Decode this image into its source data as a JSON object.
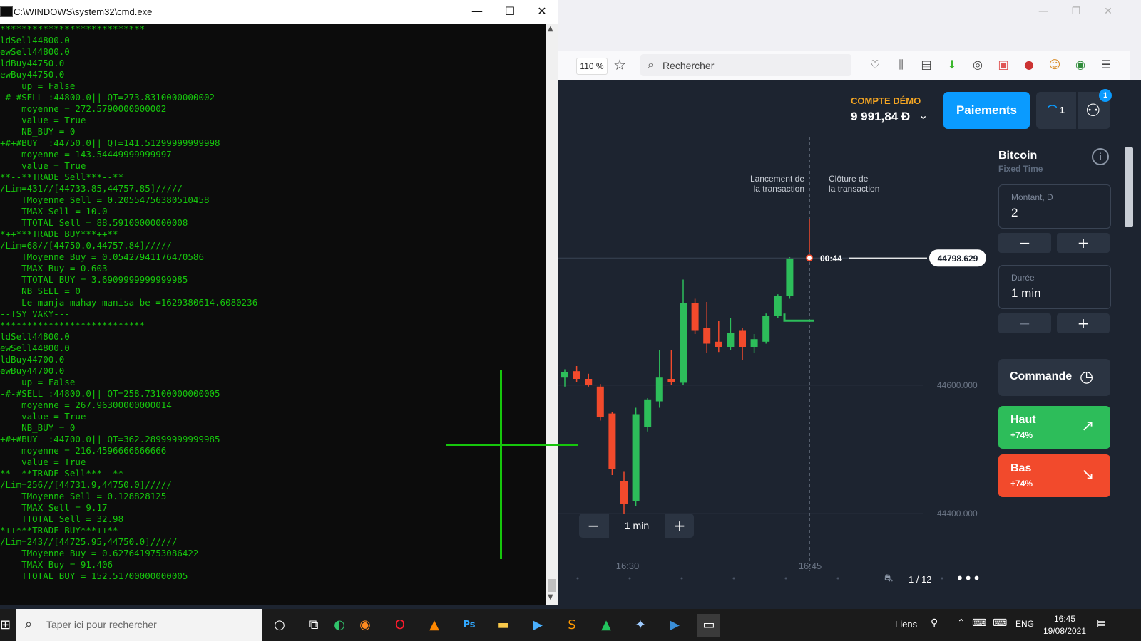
{
  "browser": {
    "zoom": "110 %",
    "search_placeholder": "Rechercher"
  },
  "app": {
    "account_label": "COMPTE DÉMO",
    "balance": "9 991,84 Đ",
    "payments_button": "Paiements",
    "tournament_count": "1",
    "user_badge": "1",
    "asset_name": "Bitcoin",
    "asset_type": "Fixed Time",
    "amount_label": "Montant, Đ",
    "amount_value": "2",
    "duration_label": "Durée",
    "duration_value": "1 min",
    "order_button": "Commande",
    "up_button": {
      "label": "Haut",
      "payout": "+74%"
    },
    "down_button": {
      "label": "Bas",
      "payout": "+74%"
    },
    "chart_duration": "1 min",
    "pagination": "1 / 12",
    "colors": {
      "up": "#2dbd5a",
      "down": "#f24a2c",
      "accent": "#0a9bff",
      "bg": "#1d2430"
    }
  },
  "chart_data": {
    "type": "candlestick",
    "asset": "Bitcoin",
    "current_price": "44798.629",
    "timer": "00:44",
    "start_label": "Lancement de\nla transaction",
    "end_label": "Clôture de\nla transaction",
    "y_ticks": [
      "44600.000",
      "44400.000"
    ],
    "x_ticks": [
      "16:30",
      "16:45"
    ],
    "candles": [
      {
        "o": 44612,
        "h": 44625,
        "l": 44598,
        "c": 44620
      },
      {
        "o": 44622,
        "h": 44630,
        "l": 44605,
        "c": 44610
      },
      {
        "o": 44610,
        "h": 44618,
        "l": 44598,
        "c": 44600
      },
      {
        "o": 44598,
        "h": 44602,
        "l": 44545,
        "c": 44550
      },
      {
        "o": 44556,
        "h": 44558,
        "l": 44460,
        "c": 44470
      },
      {
        "o": 44450,
        "h": 44465,
        "l": 44390,
        "c": 44415
      },
      {
        "o": 44420,
        "h": 44565,
        "l": 44412,
        "c": 44555
      },
      {
        "o": 44535,
        "h": 44580,
        "l": 44528,
        "c": 44578
      },
      {
        "o": 44575,
        "h": 44655,
        "l": 44565,
        "c": 44612
      },
      {
        "o": 44610,
        "h": 44655,
        "l": 44600,
        "c": 44605
      },
      {
        "o": 44604,
        "h": 44765,
        "l": 44600,
        "c": 44728
      },
      {
        "o": 44728,
        "h": 44735,
        "l": 44680,
        "c": 44685
      },
      {
        "o": 44690,
        "h": 44730,
        "l": 44650,
        "c": 44665
      },
      {
        "o": 44668,
        "h": 44700,
        "l": 44652,
        "c": 44660
      },
      {
        "o": 44660,
        "h": 44705,
        "l": 44655,
        "c": 44682
      },
      {
        "o": 44685,
        "h": 44690,
        "l": 44640,
        "c": 44660
      },
      {
        "o": 44660,
        "h": 44680,
        "l": 44650,
        "c": 44672
      },
      {
        "o": 44668,
        "h": 44712,
        "l": 44665,
        "c": 44708
      },
      {
        "o": 44708,
        "h": 44742,
        "l": 44705,
        "c": 44740
      },
      {
        "o": 44740,
        "h": 44800,
        "l": 44735,
        "c": 44798
      }
    ]
  },
  "cmd": {
    "title": "C:\\WINDOWS\\system32\\cmd.exe",
    "lines": [
      "***************************",
      "ldSell44800.0",
      "ewSell44800.0",
      "ldBuy44750.0",
      "ewBuy44750.0",
      "    up = False",
      "-#-#SELL :44800.0|| QT=273.8310000000002",
      "    moyenne = 272.5790000000002",
      "    value = True",
      "    NB_BUY = 0",
      "+#+#BUY  :44750.0|| QT=141.51299999999998",
      "    moyenne = 143.54449999999997",
      "    value = True",
      "**--**TRADE Sell***--**",
      "/Lim=431//[44733.85,44757.85]/////",
      "    TMoyenne Sell = 0.20554756380510458",
      "    TMAX Sell = 10.0",
      "    TTOTAL Sell = 88.59100000000008",
      "*++***TRADE BUY***++**",
      "/Lim=68//[44750.0,44757.84]/////",
      "    TMoyenne Buy = 0.05427941176470586",
      "    TMAX Buy = 0.603",
      "    TTOTAL BUY = 3.6909999999999985",
      "    NB_SELL = 0",
      "    Le manja mahay manisa be =1629380614.6080236",
      "--TSY VAKY---",
      "***************************",
      "ldSell44800.0",
      "ewSell44800.0",
      "ldBuy44700.0",
      "ewBuy44700.0",
      "    up = False",
      "-#-#SELL :44800.0|| QT=258.73100000000005",
      "    moyenne = 267.96300000000014",
      "    value = True",
      "    NB_BUY = 0",
      "+#+#BUY  :44700.0|| QT=362.28999999999985",
      "    moyenne = 216.4596666666666",
      "    value = True",
      "**--**TRADE Sell***--**",
      "/Lim=256//[44731.9,44750.0]/////",
      "    TMoyenne Sell = 0.128828125",
      "    TMAX Sell = 9.17",
      "    TTOTAL Sell = 32.98",
      "*++***TRADE BUY***++**",
      "/Lim=243//[44725.95,44750.0]/////",
      "    TMoyenne Buy = 0.6276419753086422",
      "    TMAX Buy = 91.406",
      "    TTOTAL BUY = 152.51700000000005"
    ]
  },
  "taskbar": {
    "search_placeholder": "Taper ici pour rechercher",
    "links": "Liens",
    "lang": "ENG",
    "time": "16:45",
    "date": "19/08/2021"
  }
}
